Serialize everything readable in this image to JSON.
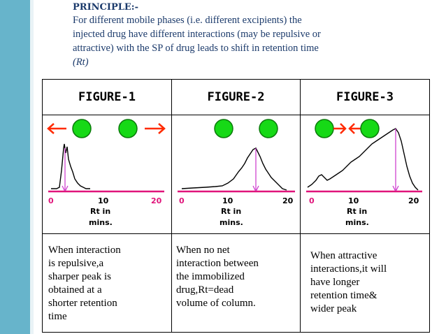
{
  "principle": {
    "title": "PRINCIPLE:-",
    "lines": [
      "For different mobile phases (i.e. different excipients) the",
      "injected drug have different interactions (may be repulsive or",
      "attractive) with the SP of drug leads to shift in retention time"
    ],
    "last_line": "(Rt)"
  },
  "table": {
    "headers": [
      "FIGURE-1",
      "FIGURE-2",
      "FIGURE-3"
    ],
    "figures": [
      {
        "axis_start": "0",
        "axis_mid": "10",
        "axis_end": "20",
        "axis_label_1": "Rt in",
        "axis_label_2": "mins."
      },
      {
        "axis_start": "0",
        "axis_mid": "10",
        "axis_end": "20",
        "axis_label_1": "Rt in",
        "axis_label_2": "mins."
      },
      {
        "axis_start": "0",
        "axis_mid": "10",
        "axis_end": "20",
        "axis_label_1": "Rt in",
        "axis_label_2": "mins."
      }
    ],
    "captions": [
      [
        "When interaction",
        "is repulsive,a",
        "sharper peak is",
        "obtained at a",
        "shorter retention",
        "time"
      ],
      [
        "When no net",
        "interaction between",
        "the immobilized",
        "drug,Rt=dead",
        "volume of column."
      ],
      [
        "When attractive",
        "interactions,it will",
        "have longer",
        "retention time&",
        "wider peak"
      ]
    ]
  },
  "colors": {
    "sidebar": "#67b4cb",
    "title_text": "#1b3a6b",
    "ball_fill": "#16d916",
    "arrow": "#ff2a00",
    "axis": "#e0147a",
    "marker": "#cc33cc"
  }
}
